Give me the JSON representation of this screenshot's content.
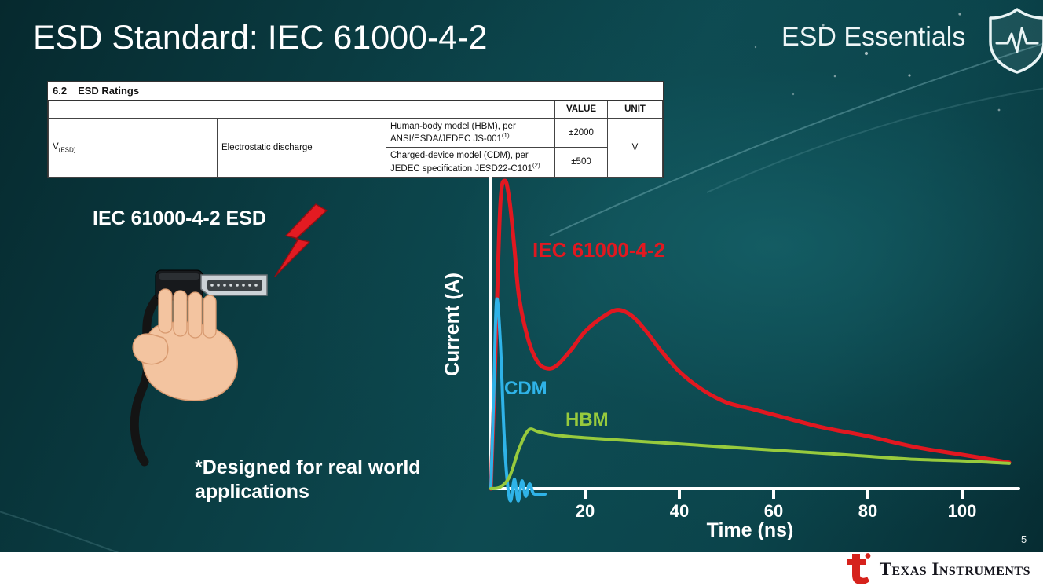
{
  "slide": {
    "title": "ESD Standard: IEC 61000-4-2",
    "program_label": "ESD Essentials",
    "page_number": "5",
    "footer_brand": "Texas Instruments"
  },
  "datasheet_table": {
    "caption_number": "6.2",
    "caption_text": "ESD Ratings",
    "value_header": "VALUE",
    "unit_header": "UNIT",
    "symbol_base": "V",
    "symbol_sub": "(ESD)",
    "parameter": "Electrostatic discharge",
    "rows": [
      {
        "description": "Human-body model (HBM), per ANSI/ESDA/JEDEC JS-001",
        "footnote_ref": "(1)",
        "value": "±2000"
      },
      {
        "description": "Charged-device model (CDM), per JEDEC specification JESD22-C101",
        "footnote_ref": "(2)",
        "value": "±500"
      }
    ],
    "unit": "V"
  },
  "illustration": {
    "label": "IEC 61000-4-2 ESD",
    "footnote": "*Designed for real world applications"
  },
  "chart_data": {
    "type": "line",
    "title": "",
    "xlabel": "Time (ns)",
    "ylabel": "Current (A)",
    "x_ticks": [
      20,
      40,
      60,
      80,
      100
    ],
    "xlim": [
      0,
      112
    ],
    "ylim": [
      -6,
      105
    ],
    "grid": false,
    "legend_position": "inline-labels",
    "series": [
      {
        "name": "IEC 61000-4-2",
        "color": "#e11820",
        "width": 5,
        "points": [
          [
            0,
            0
          ],
          [
            1,
            45
          ],
          [
            2,
            92
          ],
          [
            3,
            100
          ],
          [
            4,
            93
          ],
          [
            5,
            78
          ],
          [
            6,
            62
          ],
          [
            8,
            48
          ],
          [
            10,
            41
          ],
          [
            12,
            39
          ],
          [
            14,
            40
          ],
          [
            17,
            45
          ],
          [
            20,
            51
          ],
          [
            24,
            56
          ],
          [
            27,
            58
          ],
          [
            30,
            56
          ],
          [
            33,
            51
          ],
          [
            36,
            45
          ],
          [
            40,
            38
          ],
          [
            45,
            32
          ],
          [
            50,
            28
          ],
          [
            55,
            26
          ],
          [
            60,
            24
          ],
          [
            70,
            20
          ],
          [
            80,
            17
          ],
          [
            90,
            13.5
          ],
          [
            100,
            11
          ],
          [
            110,
            8.5
          ]
        ]
      },
      {
        "name": "CDM",
        "color": "#2fb3e8",
        "width": 4,
        "points": [
          [
            0,
            0
          ],
          [
            0.6,
            30
          ],
          [
            1.2,
            61
          ],
          [
            2,
            48
          ],
          [
            2.8,
            18
          ],
          [
            3.5,
            2
          ],
          [
            4.2,
            -4
          ],
          [
            5,
            3
          ],
          [
            5.8,
            -4
          ],
          [
            6.6,
            2.5
          ],
          [
            7.4,
            -2.5
          ],
          [
            8.2,
            1.5
          ],
          [
            9,
            -1.5
          ],
          [
            10,
            -1.8
          ],
          [
            11.5,
            -1.8
          ]
        ]
      },
      {
        "name": "HBM",
        "color": "#97ca3d",
        "width": 4,
        "points": [
          [
            0,
            0
          ],
          [
            2,
            0.5
          ],
          [
            4,
            4
          ],
          [
            6,
            13
          ],
          [
            8,
            19
          ],
          [
            10,
            18.5
          ],
          [
            13,
            17.5
          ],
          [
            16,
            17
          ],
          [
            20,
            16.5
          ],
          [
            30,
            15.5
          ],
          [
            40,
            14.5
          ],
          [
            50,
            13.5
          ],
          [
            60,
            12.5
          ],
          [
            70,
            11.5
          ],
          [
            80,
            10.5
          ],
          [
            90,
            9.5
          ],
          [
            100,
            9
          ],
          [
            110,
            8.2
          ]
        ]
      }
    ]
  },
  "colors": {
    "iec_red": "#e11820",
    "cdm_blue": "#2fb3e8",
    "hbm_green": "#97ca3d",
    "ti_red": "#d6221c",
    "slide_teal": "#0b444b"
  }
}
